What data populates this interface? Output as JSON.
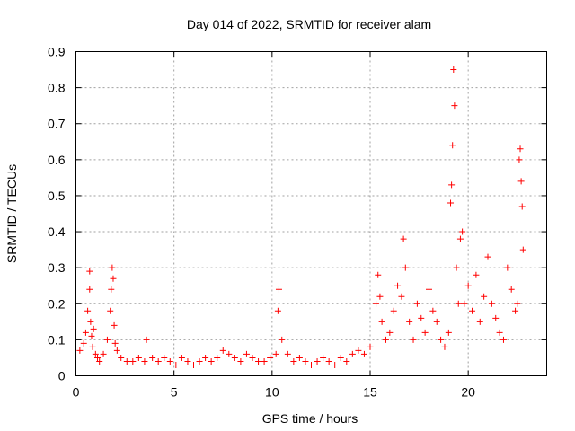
{
  "chart_data": {
    "type": "scatter",
    "title": "Day 014 of 2022, SRMTID for receiver alam",
    "xlabel": "GPS time / hours",
    "ylabel": "SRMTID / TECUs",
    "xlim": [
      0,
      24
    ],
    "ylim": [
      0,
      0.9
    ],
    "xticks": [
      "0",
      "5",
      "10",
      "15",
      "20"
    ],
    "yticks": [
      "0",
      "0.1",
      "0.2",
      "0.3",
      "0.4",
      "0.5",
      "0.6",
      "0.7",
      "0.8",
      "0.9"
    ],
    "grid": true,
    "marker": "+",
    "color": "#ff0000",
    "series": [
      {
        "name": "SRMTID",
        "x": [
          0.2,
          0.4,
          0.5,
          0.6,
          0.7,
          0.7,
          0.75,
          0.8,
          0.85,
          0.9,
          1.0,
          1.1,
          1.2,
          1.4,
          1.6,
          1.75,
          1.8,
          1.85,
          1.9,
          1.95,
          2.0,
          2.1,
          2.3,
          2.6,
          2.9,
          3.2,
          3.5,
          3.6,
          3.9,
          4.2,
          4.5,
          4.8,
          5.1,
          5.4,
          5.7,
          6.0,
          6.3,
          6.6,
          6.9,
          7.2,
          7.5,
          7.8,
          8.1,
          8.4,
          8.7,
          9.0,
          9.3,
          9.6,
          9.9,
          10.2,
          10.3,
          10.35,
          10.5,
          10.8,
          11.1,
          11.4,
          11.7,
          12.0,
          12.3,
          12.6,
          12.9,
          13.2,
          13.5,
          13.8,
          14.1,
          14.4,
          14.7,
          15.0,
          15.3,
          15.4,
          15.5,
          15.6,
          15.8,
          16.0,
          16.2,
          16.4,
          16.6,
          16.7,
          16.8,
          17.0,
          17.2,
          17.4,
          17.6,
          17.8,
          18.0,
          18.2,
          18.4,
          18.6,
          18.8,
          19.0,
          19.1,
          19.15,
          19.2,
          19.25,
          19.3,
          19.4,
          19.5,
          19.6,
          19.7,
          19.8,
          20.0,
          20.2,
          20.4,
          20.6,
          20.8,
          21.0,
          21.2,
          21.4,
          21.6,
          21.8,
          22.0,
          22.2,
          22.4,
          22.5,
          22.6,
          22.65,
          22.7,
          22.75,
          22.8
        ],
        "y": [
          0.07,
          0.09,
          0.12,
          0.18,
          0.24,
          0.29,
          0.15,
          0.11,
          0.08,
          0.13,
          0.06,
          0.05,
          0.04,
          0.06,
          0.1,
          0.18,
          0.24,
          0.3,
          0.27,
          0.14,
          0.09,
          0.07,
          0.05,
          0.04,
          0.04,
          0.05,
          0.04,
          0.1,
          0.05,
          0.04,
          0.05,
          0.04,
          0.03,
          0.05,
          0.04,
          0.03,
          0.04,
          0.05,
          0.04,
          0.05,
          0.07,
          0.06,
          0.05,
          0.04,
          0.06,
          0.05,
          0.04,
          0.04,
          0.05,
          0.06,
          0.18,
          0.24,
          0.1,
          0.06,
          0.04,
          0.05,
          0.04,
          0.03,
          0.04,
          0.05,
          0.04,
          0.03,
          0.05,
          0.04,
          0.06,
          0.07,
          0.06,
          0.08,
          0.2,
          0.28,
          0.22,
          0.15,
          0.1,
          0.12,
          0.18,
          0.25,
          0.22,
          0.38,
          0.3,
          0.15,
          0.1,
          0.2,
          0.16,
          0.12,
          0.24,
          0.18,
          0.15,
          0.1,
          0.08,
          0.12,
          0.48,
          0.53,
          0.64,
          0.85,
          0.75,
          0.3,
          0.2,
          0.38,
          0.4,
          0.2,
          0.25,
          0.18,
          0.28,
          0.15,
          0.22,
          0.33,
          0.2,
          0.16,
          0.12,
          0.1,
          0.3,
          0.24,
          0.18,
          0.2,
          0.6,
          0.63,
          0.54,
          0.47,
          0.35
        ]
      }
    ]
  }
}
